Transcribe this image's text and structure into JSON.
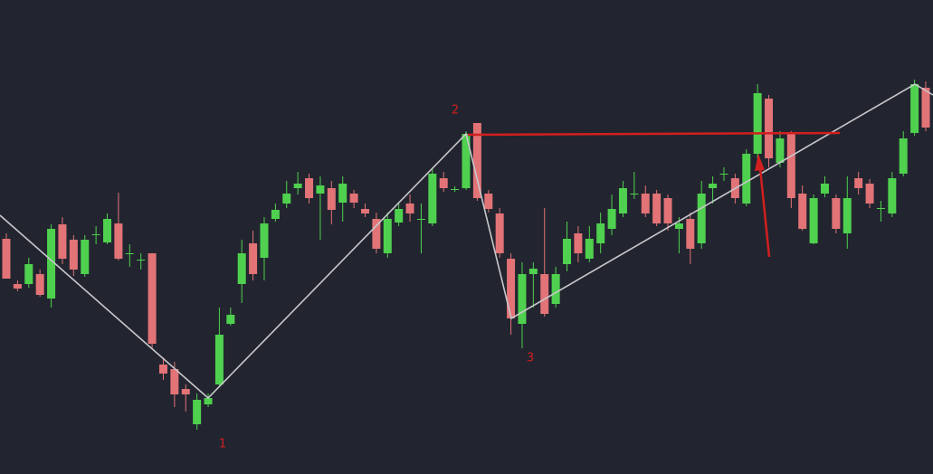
{
  "chart_data": {
    "type": "candlestick",
    "up_color": "#4fd14f",
    "down_color": "#e27377",
    "ylim": [
      0,
      524
    ],
    "annotations": [
      "1",
      "2",
      "3"
    ],
    "open": [
      260,
      210,
      210,
      221,
      194,
      276,
      259,
      221,
      264,
      256,
      277,
      244,
      237,
      244,
      121,
      116,
      94,
      55,
      77,
      99,
      166,
      210,
      255,
      239,
      282,
      299,
      316,
      327,
      310,
      316,
      300,
      310,
      293,
      282,
      244,
      278,
      299,
      282,
      277,
      327,
      315,
      316,
      388,
      310,
      288,
      238,
      166,
      221,
      221,
      188,
      232,
      266,
      238,
      255,
      271,
      288,
      310,
      310,
      310,
      305,
      271,
      282,
      255,
      316,
      332,
      327,
      299,
      354,
      415,
      344,
      376,
      310,
      255,
      310,
      305,
      266,
      327,
      321,
      294,
      288,
      332,
      377,
      427
    ],
    "high": [
      266,
      214,
      239,
      226,
      276,
      284,
      264,
      264,
      274,
      288,
      311,
      254,
      244,
      244,
      129,
      124,
      99,
      89,
      89,
      184,
      184,
      259,
      269,
      284,
      299,
      324,
      334,
      332,
      329,
      324,
      329,
      314,
      299,
      289,
      289,
      299,
      309,
      299,
      339,
      334,
      318,
      379,
      388,
      314,
      294,
      244,
      234,
      234,
      294,
      229,
      279,
      274,
      274,
      289,
      309,
      324,
      334,
      319,
      314,
      309,
      284,
      289,
      324,
      329,
      339,
      332,
      359,
      431,
      419,
      379,
      379,
      319,
      309,
      329,
      309,
      329,
      334,
      326,
      302,
      334,
      379,
      436,
      434
    ],
    "low": [
      216,
      202,
      206,
      196,
      184,
      232,
      219,
      218,
      254,
      254,
      236,
      229,
      226,
      139,
      104,
      74,
      69,
      49,
      74,
      96,
      164,
      189,
      214,
      214,
      279,
      294,
      309,
      299,
      259,
      276,
      279,
      294,
      284,
      244,
      239,
      274,
      279,
      244,
      274,
      312,
      312,
      314,
      302,
      289,
      239,
      154,
      139,
      184,
      174,
      184,
      224,
      234,
      234,
      244,
      264,
      284,
      304,
      284,
      274,
      269,
      244,
      232,
      249,
      299,
      324,
      299,
      296,
      349,
      339,
      339,
      294,
      269,
      254,
      306,
      266,
      249,
      309,
      294,
      279,
      284,
      329,
      374,
      379
    ],
    "close": [
      216,
      205,
      232,
      198,
      271,
      238,
      226,
      259,
      265,
      282,
      238,
      244,
      237,
      144,
      111,
      88,
      88,
      82,
      84,
      154,
      176,
      244,
      221,
      277,
      292,
      310,
      321,
      305,
      319,
      292,
      321,
      300,
      288,
      249,
      282,
      293,
      288,
      282,
      332,
      316,
      315,
      376,
      305,
      293,
      244,
      172,
      221,
      227,
      177,
      221,
      260,
      244,
      260,
      277,
      293,
      316,
      310,
      288,
      277,
      277,
      277,
      249,
      310,
      321,
      332,
      305,
      354,
      421,
      349,
      371,
      305,
      271,
      305,
      321,
      271,
      305,
      316,
      299,
      294,
      327,
      371,
      431,
      383
    ]
  }
}
